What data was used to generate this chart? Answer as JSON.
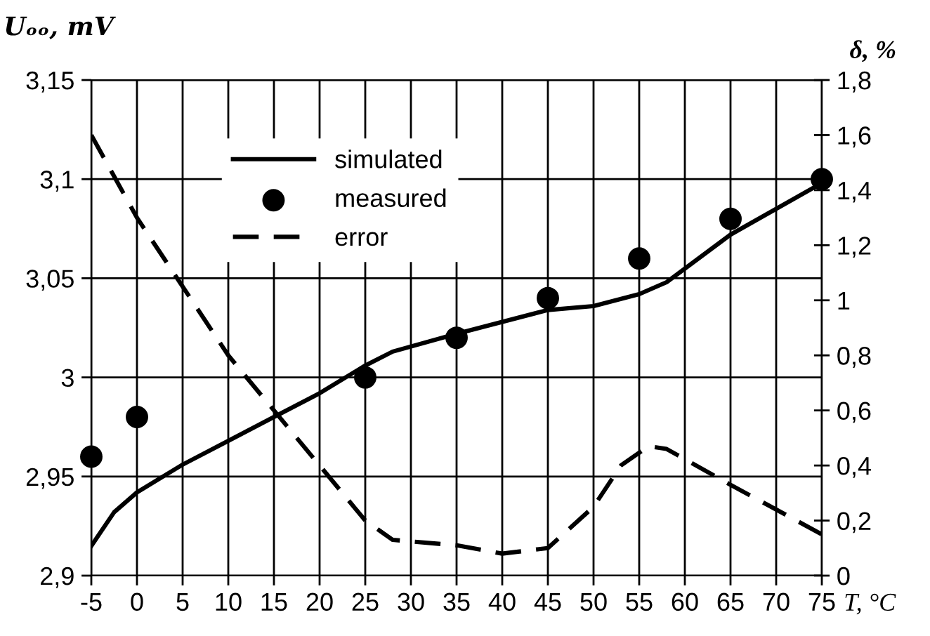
{
  "chart_data": {
    "type": "line",
    "xlabel": "T, °C",
    "ylabel": "Uₒₒ, mV",
    "y2label": "δ, %",
    "x": [
      -5,
      -2.5,
      0,
      5,
      10,
      15,
      20,
      25,
      28,
      35,
      45,
      50,
      55,
      58,
      65,
      75
    ],
    "series": [
      {
        "name": "simulated",
        "color": "#000000",
        "marker": "none",
        "line_style": "solid",
        "values": [
          2.915,
          2.932,
          2.942,
          2.956,
          2.968,
          2.98,
          2.992,
          3.006,
          3.013,
          3.022,
          3.034,
          3.036,
          3.042,
          3.048,
          3.072,
          3.098
        ]
      },
      {
        "name": "measured",
        "type": "scatter",
        "color": "#000000",
        "marker": "circle",
        "x": [
          -5,
          0,
          25,
          35,
          45,
          55,
          65,
          75
        ],
        "values": [
          2.96,
          2.98,
          3.0,
          3.02,
          3.04,
          3.06,
          3.08,
          3.1
        ]
      },
      {
        "name": "error",
        "type": "line",
        "axis": "y2",
        "color": "#000000",
        "marker": "none",
        "line_style": "dashed",
        "x": [
          -5,
          0,
          5,
          10,
          15,
          20,
          25,
          28,
          35,
          40,
          45,
          50,
          53,
          56,
          58,
          65,
          75
        ],
        "values": [
          1.6,
          1.3,
          1.05,
          0.8,
          0.6,
          0.4,
          0.2,
          0.13,
          0.11,
          0.08,
          0.1,
          0.25,
          0.4,
          0.47,
          0.46,
          0.33,
          0.15
        ]
      }
    ],
    "xlim": [
      -5,
      75
    ],
    "xticks": [
      -5,
      0,
      5,
      10,
      15,
      20,
      25,
      30,
      35,
      40,
      45,
      50,
      55,
      60,
      65,
      70,
      75
    ],
    "ylim": [
      2.9,
      3.15
    ],
    "yticks": [
      {
        "value": 2.9,
        "label": "2,9"
      },
      {
        "value": 2.95,
        "label": "2,95"
      },
      {
        "value": 3,
        "label": "3"
      },
      {
        "value": 3.05,
        "label": "3,05"
      },
      {
        "value": 3.1,
        "label": "3,1"
      },
      {
        "value": 3.15,
        "label": "3,15"
      }
    ],
    "y2lim": [
      0,
      1.8
    ],
    "y2ticks": [
      0,
      {
        "value": 0.2,
        "label": "0,2"
      },
      {
        "value": 0.4,
        "label": "0,4"
      },
      {
        "value": 0.6,
        "label": "0,6"
      },
      {
        "value": 0.8,
        "label": "0,8"
      },
      1,
      {
        "value": 1.2,
        "label": "1,2"
      },
      {
        "value": 1.4,
        "label": "1,4"
      },
      {
        "value": 1.6,
        "label": "1,6"
      },
      {
        "value": 1.8,
        "label": "1,8"
      }
    ],
    "grid": true,
    "legend": "top"
  }
}
